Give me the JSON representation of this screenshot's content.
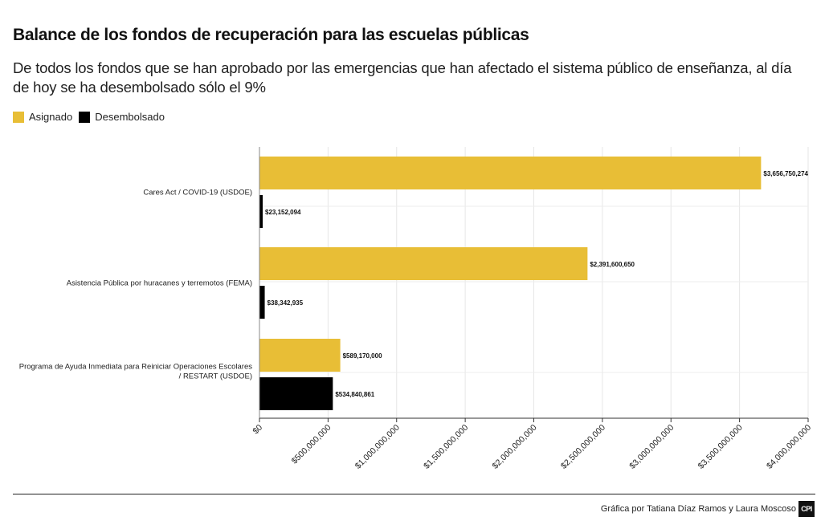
{
  "header": {
    "title": "Balance de los fondos de recuperación para las escuelas públicas",
    "subtitle": "De todos los fondos que se han aprobado por las emergencias que han afectado el sistema público de enseñanza, al día de hoy se ha desembolsado sólo el 9%"
  },
  "legend": {
    "asignado": "Asignado",
    "desembolsado": "Desembolsado"
  },
  "colors": {
    "asignado": "#E8BE36",
    "desembolsado": "#000000",
    "grid": "#e6e6e6"
  },
  "chart_data": {
    "type": "bar",
    "orientation": "horizontal",
    "categories": [
      [
        "Cares Act / COVID-19 (USDOE)"
      ],
      [
        "Asistencia Pública por huracanes y terremotos (FEMA)"
      ],
      [
        "Programa de Ayuda Inmediata para Reiniciar Operaciones Escolares",
        "/ RESTART (USDOE)"
      ]
    ],
    "series": [
      {
        "name": "Asignado",
        "values": [
          3656750274,
          2391600650,
          589170000
        ],
        "labels": [
          "$3,656,750,274",
          "$2,391,600,650",
          "$589,170,000"
        ]
      },
      {
        "name": "Desembolsado",
        "values": [
          23152094,
          38342935,
          534840861
        ],
        "labels": [
          "$23,152,094",
          "$38,342,935",
          "$534,840,861"
        ]
      }
    ],
    "xlim": [
      0,
      4000000000
    ],
    "xticks": [
      0,
      500000000,
      1000000000,
      1500000000,
      2000000000,
      2500000000,
      3000000000,
      3500000000,
      4000000000
    ],
    "xtick_labels": [
      "$0",
      "$500,000,000",
      "$1,000,000,000",
      "$1,500,000,000",
      "$2,000,000,000",
      "$2,500,000,000",
      "$3,000,000,000",
      "$3,500,000,000",
      "$4,000,000,000"
    ],
    "xlabel": "",
    "ylabel": "",
    "grid": true,
    "legend_position": "top-left"
  },
  "footer": {
    "credit": "Gráfica por Tatiana Díaz Ramos y Laura Moscoso",
    "logo_text": "CPI"
  }
}
